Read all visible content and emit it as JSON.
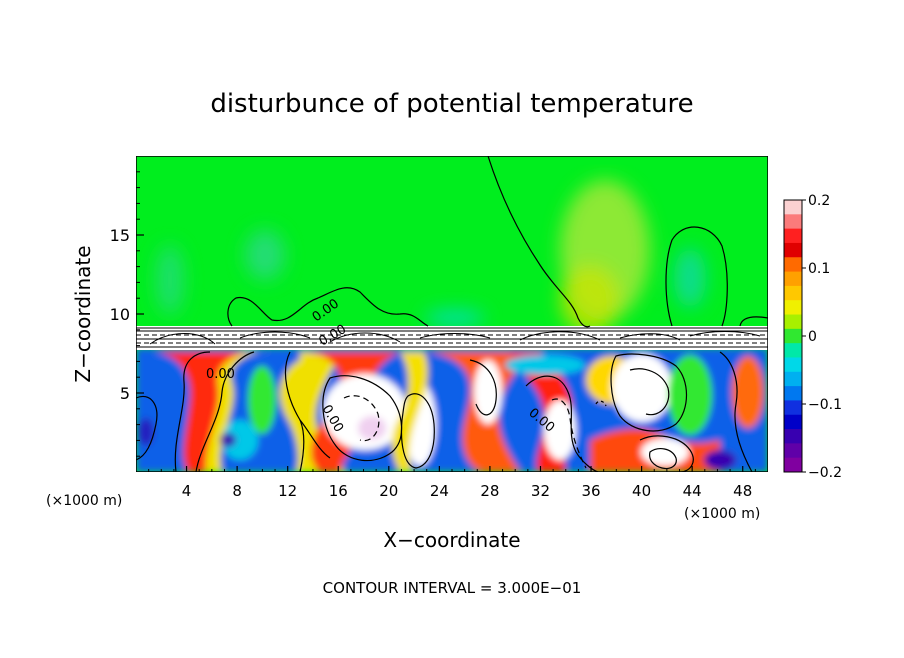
{
  "chart_data": {
    "type": "heatmap",
    "title": "disturbunce of potential temperature",
    "xlabel": "X−coordinate",
    "ylabel": "Z−coordinate",
    "x_unit": "(×1000 m)",
    "x_unit_right": "(×1000 m)",
    "xlim": [
      0,
      50
    ],
    "ylim": [
      0,
      20
    ],
    "xticks": [
      4,
      8,
      12,
      16,
      20,
      24,
      28,
      32,
      36,
      40,
      44,
      48
    ],
    "yticks": [
      5,
      10,
      15
    ],
    "colorbar": {
      "ticks": [
        0.2,
        0.1,
        0,
        -0.1,
        -0.2
      ],
      "tick_labels": [
        "0.2",
        "0.1",
        "0",
        "−0.1",
        "−0.2"
      ],
      "colors": [
        "#fbd1d1",
        "#fb7b7b",
        "#ff2020",
        "#e00000",
        "#ff6a00",
        "#ffa000",
        "#ffc800",
        "#f0f000",
        "#a8f000",
        "#30e830",
        "#00e8a8",
        "#00d8e8",
        "#00b0f0",
        "#0078f0",
        "#1030e0",
        "#0000c8",
        "#3800b0",
        "#6000a8",
        "#8000a0"
      ]
    },
    "contour_labels": [
      "0.00",
      "0.00",
      "0.00",
      "0.00",
      "0.00"
    ],
    "footer": "CONTOUR INTERVAL = 3.000E−01"
  }
}
